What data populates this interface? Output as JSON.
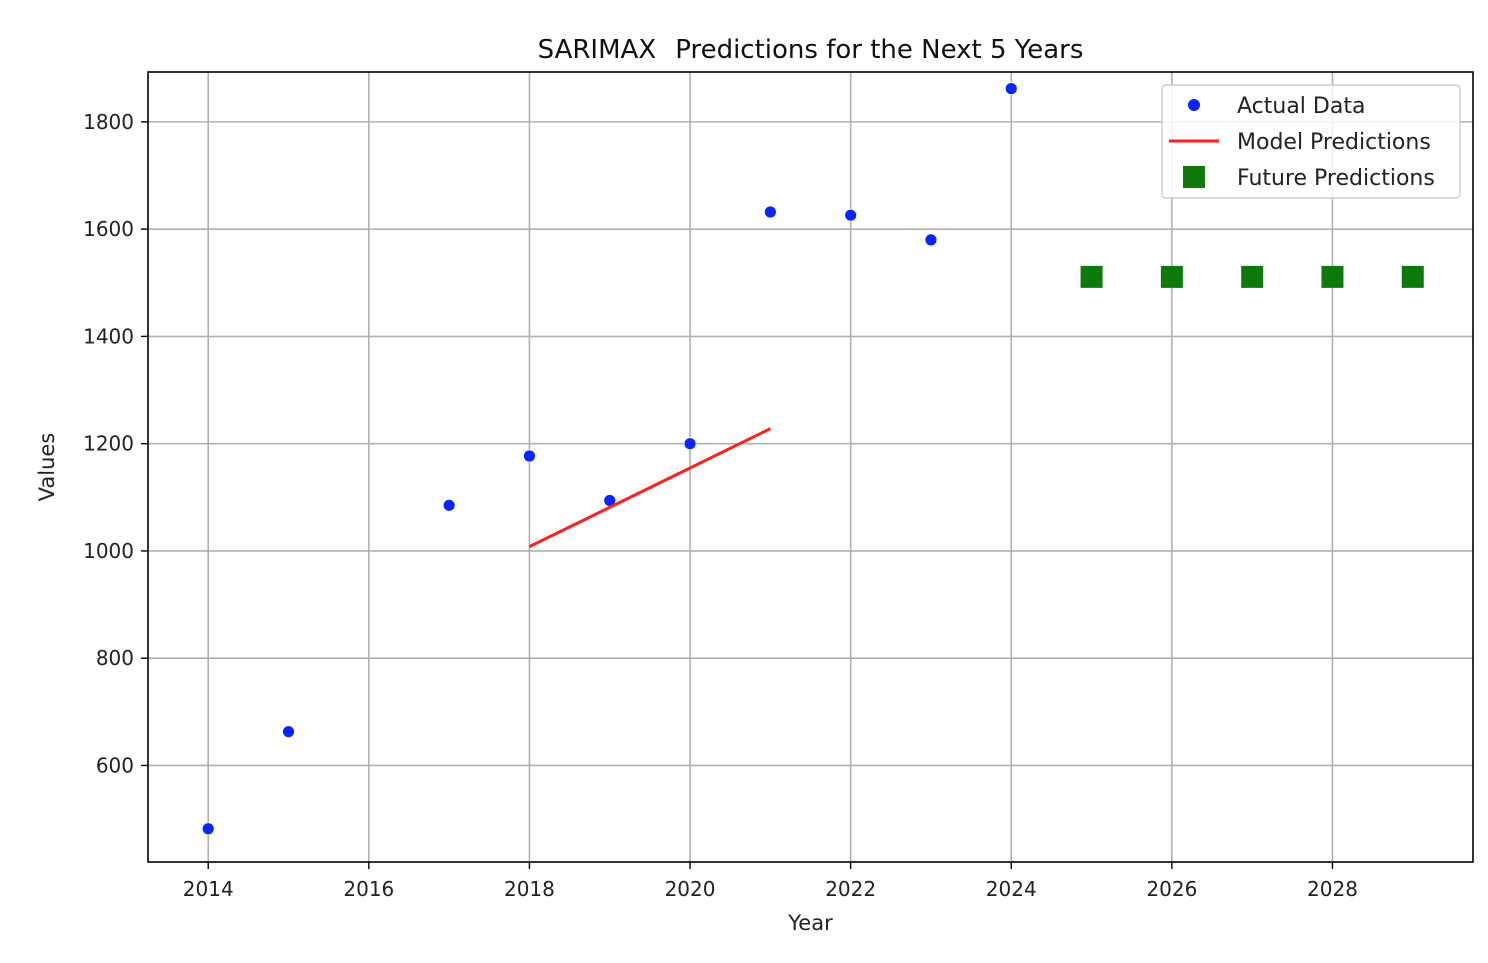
{
  "chart_data": {
    "type": "scatter",
    "title_parts": [
      "SARIMAX",
      "Predictions for the Next 5 Years"
    ],
    "xlabel": "Year",
    "ylabel": "Values",
    "xlim": [
      2013.25,
      2029.75
    ],
    "ylim": [
      420,
      1893
    ],
    "x_ticks": [
      2014,
      2016,
      2018,
      2020,
      2022,
      2024,
      2026,
      2028
    ],
    "y_ticks": [
      600,
      800,
      1000,
      1200,
      1400,
      1600,
      1800
    ],
    "grid": true,
    "legend_position": "top-right",
    "series": [
      {
        "name": "Actual Data",
        "kind": "scatter",
        "color": "#0a24ff",
        "marker": "circle",
        "points": [
          {
            "x": 2014,
            "y": 482
          },
          {
            "x": 2015,
            "y": 663
          },
          {
            "x": 2017,
            "y": 1085
          },
          {
            "x": 2018,
            "y": 1177
          },
          {
            "x": 2019,
            "y": 1094
          },
          {
            "x": 2020,
            "y": 1200
          },
          {
            "x": 2021,
            "y": 1632
          },
          {
            "x": 2022,
            "y": 1626
          },
          {
            "x": 2023,
            "y": 1580
          },
          {
            "x": 2024,
            "y": 1862
          }
        ]
      },
      {
        "name": "Model Predictions",
        "kind": "line",
        "color": "#ff1f1f",
        "points": [
          {
            "x": 2018,
            "y": 1008
          },
          {
            "x": 2021,
            "y": 1228
          }
        ]
      },
      {
        "name": "Future Predictions",
        "kind": "scatter",
        "color": "#0e7a0e",
        "marker": "square",
        "points": [
          {
            "x": 2025,
            "y": 1511
          },
          {
            "x": 2026,
            "y": 1511
          },
          {
            "x": 2027,
            "y": 1511
          },
          {
            "x": 2028,
            "y": 1511
          },
          {
            "x": 2029,
            "y": 1511
          }
        ]
      }
    ]
  }
}
